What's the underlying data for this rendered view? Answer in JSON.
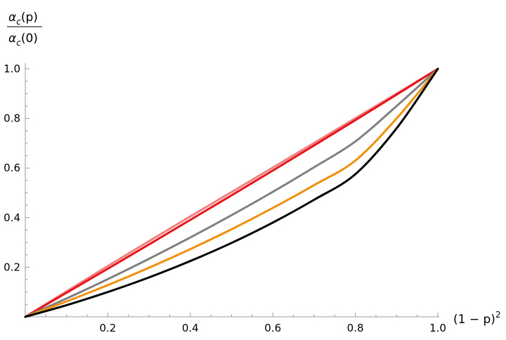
{
  "chart_data": {
    "type": "line",
    "xlabel": "(1 − p)",
    "xlabel_superscript": "2",
    "ylabel": {
      "numerator": {
        "symbol": "α",
        "subscript": "c",
        "argument": "(p)"
      },
      "denominator": {
        "symbol": "α",
        "subscript": "c",
        "argument": "(0)"
      }
    },
    "xlim": [
      0,
      1
    ],
    "ylim": [
      0,
      1
    ],
    "x_ticks": [
      {
        "value": 0.2,
        "label": "0.2"
      },
      {
        "value": 0.4,
        "label": "0.4"
      },
      {
        "value": 0.6,
        "label": "0.6"
      },
      {
        "value": 0.8,
        "label": "0.8"
      },
      {
        "value": 1.0,
        "label": "1.0"
      }
    ],
    "y_ticks": [
      {
        "value": 0.2,
        "label": "0.2"
      },
      {
        "value": 0.4,
        "label": "0.4"
      },
      {
        "value": 0.6,
        "label": "0.6"
      },
      {
        "value": 0.8,
        "label": "0.8"
      },
      {
        "value": 1.0,
        "label": "1.0"
      }
    ],
    "x_minor_step": 0.05,
    "y_minor_step": 0.05,
    "grid": false,
    "x": [
      0,
      0.1,
      0.2,
      0.3,
      0.4,
      0.5,
      0.6,
      0.7,
      0.8,
      0.9,
      1.0
    ],
    "series": [
      {
        "color": "#f08080",
        "values": [
          0,
          0.103,
          0.205,
          0.305,
          0.405,
          0.503,
          0.602,
          0.701,
          0.801,
          0.9,
          1.0
        ]
      },
      {
        "color": "#e8141b",
        "values": [
          0,
          0.097,
          0.194,
          0.292,
          0.391,
          0.49,
          0.59,
          0.691,
          0.793,
          0.896,
          1.0
        ]
      },
      {
        "color": "#808080",
        "values": [
          0,
          0.074,
          0.152,
          0.234,
          0.32,
          0.41,
          0.504,
          0.603,
          0.707,
          0.85,
          1.0
        ]
      },
      {
        "color": "#f0900c",
        "values": [
          0,
          0.062,
          0.128,
          0.198,
          0.273,
          0.353,
          0.439,
          0.531,
          0.63,
          0.8,
          1.0
        ]
      },
      {
        "color": "#000000",
        "values": [
          0,
          0.047,
          0.1,
          0.159,
          0.225,
          0.298,
          0.38,
          0.472,
          0.575,
          0.76,
          1.0
        ]
      }
    ]
  }
}
